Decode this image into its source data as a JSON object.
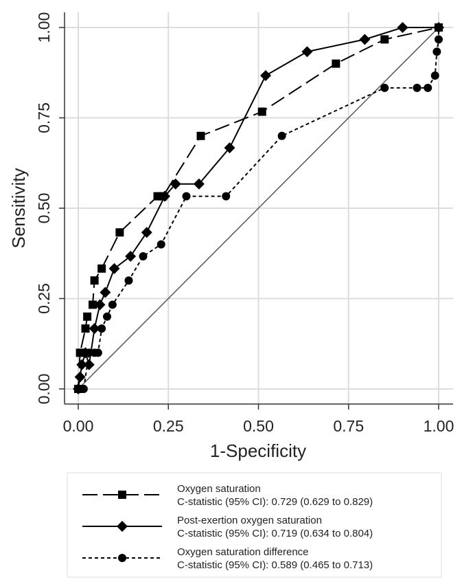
{
  "chart_data": {
    "type": "line",
    "xlabel": "1-Specificity",
    "ylabel": "Sensitivity",
    "xlim": [
      0,
      1
    ],
    "ylim": [
      0,
      1
    ],
    "x_ticks": [
      0,
      0.25,
      0.5,
      0.75,
      1
    ],
    "y_ticks": [
      0,
      0.25,
      0.5,
      0.75,
      1
    ],
    "x_tick_labels": [
      "0.00",
      "0.25",
      "0.50",
      "0.75",
      "1.00"
    ],
    "y_tick_labels": [
      "0.00",
      "0.25",
      "0.50",
      "0.75",
      "1.00"
    ],
    "grid": true,
    "reference_line": {
      "x": [
        0,
        1
      ],
      "y": [
        0,
        1
      ]
    },
    "legend_position": "bottom",
    "series": [
      {
        "name": "Oxygen saturation",
        "stat": "C-statistic (95% CI): 0.729 (0.629 to 0.829)",
        "marker": "square",
        "dash": "long-dash",
        "color": "#000000",
        "x": [
          0,
          0.005,
          0.02,
          0.025,
          0.04,
          0.045,
          0.065,
          0.115,
          0.22,
          0.235,
          0.34,
          0.51,
          0.715,
          0.85,
          1.0
        ],
        "y": [
          0,
          0.1,
          0.167,
          0.2,
          0.233,
          0.3,
          0.333,
          0.433,
          0.533,
          0.533,
          0.7,
          0.767,
          0.9,
          0.967,
          1.0
        ]
      },
      {
        "name": "Post-exertion oxygen saturation",
        "stat": "C-statistic (95% CI): 0.719 (0.634 to 0.804)",
        "marker": "diamond",
        "dash": "solid",
        "color": "#000000",
        "x": [
          0,
          0.005,
          0.01,
          0.02,
          0.03,
          0.045,
          0.06,
          0.075,
          0.1,
          0.145,
          0.19,
          0.24,
          0.27,
          0.335,
          0.42,
          0.52,
          0.635,
          0.795,
          0.9,
          1.0
        ],
        "y": [
          0,
          0.033,
          0.067,
          0.1,
          0.067,
          0.167,
          0.233,
          0.267,
          0.333,
          0.367,
          0.433,
          0.533,
          0.567,
          0.567,
          0.667,
          0.867,
          0.933,
          0.967,
          1.0,
          1.0
        ]
      },
      {
        "name": "Oxygen saturation difference",
        "stat": "C-statistic (95% CI): 0.589 (0.465 to 0.713)",
        "marker": "circle",
        "dash": "short-dash",
        "color": "#000000",
        "x": [
          0,
          0.005,
          0.015,
          0.03,
          0.045,
          0.055,
          0.065,
          0.08,
          0.095,
          0.14,
          0.18,
          0.23,
          0.3,
          0.41,
          0.565,
          0.85,
          0.94,
          0.97,
          0.99,
          0.995,
          1.0,
          1.0
        ],
        "y": [
          0,
          0.0,
          0.0,
          0.1,
          0.1,
          0.1,
          0.167,
          0.2,
          0.233,
          0.3,
          0.367,
          0.4,
          0.533,
          0.533,
          0.7,
          0.833,
          0.833,
          0.833,
          0.867,
          0.933,
          0.967,
          1.0
        ]
      }
    ]
  }
}
